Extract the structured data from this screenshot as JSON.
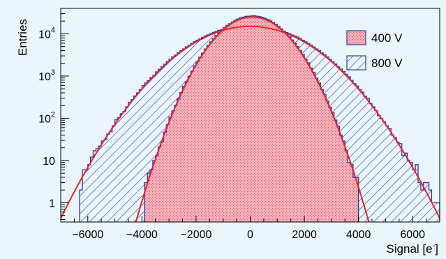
{
  "chart_data": {
    "type": "histogram",
    "xlabel": "Signal [e",
    "xlabel_sup": "-",
    "xlabel_close": "]",
    "ylabel": "Entries",
    "xlim": [
      -7000,
      7000
    ],
    "ylim": [
      0.35,
      40000
    ],
    "y_scale": "log",
    "x_ticks": [
      -6000,
      -4000,
      -2000,
      0,
      2000,
      4000,
      6000
    ],
    "x_tick_labels": [
      "−6000",
      "−4000",
      "−2000",
      "0",
      "2000",
      "4000",
      "6000"
    ],
    "y_ticks": [
      {
        "value": 1,
        "base": "1",
        "sup": ""
      },
      {
        "value": 10,
        "base": "10",
        "sup": ""
      },
      {
        "value": 100,
        "base": "10",
        "sup": "2"
      },
      {
        "value": 1000,
        "base": "10",
        "sup": "3"
      },
      {
        "value": 10000,
        "base": "10",
        "sup": "4"
      }
    ],
    "legend_position": "top-right",
    "series": [
      {
        "name": "800 V",
        "fill": "hatched",
        "color": "#2a3fb5",
        "fit_color": "#f02020",
        "fit": {
          "peak": 15000,
          "mean": 0,
          "sigma": 1530
        },
        "bin_width": 100,
        "bin_start": -6300,
        "bin_end": 7000
      },
      {
        "name": "400 V",
        "fill": "dotted",
        "color": "#2a3fb5",
        "fill_color": "#f3a9b2",
        "fit_color": "#f02020",
        "fit": {
          "peak": 25000,
          "mean": 80,
          "sigma": 910
        },
        "bin_width": 100,
        "bin_start": -3900,
        "bin_end": 4000
      }
    ]
  }
}
